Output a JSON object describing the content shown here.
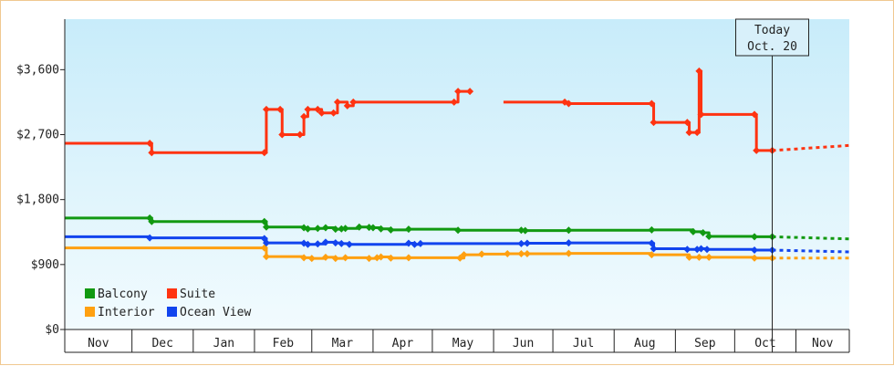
{
  "chart_data": {
    "type": "line",
    "title": "",
    "xlabel": "",
    "ylabel": "",
    "ylim": [
      0,
      4300
    ],
    "yticks": [
      0,
      900,
      1800,
      2700,
      3600
    ],
    "ytick_labels": [
      "$0",
      "$900",
      "$1,800",
      "$2,700",
      "$3,600"
    ],
    "xlim": [
      "2023-10-28",
      "2024-11-28"
    ],
    "month_labels": [
      "Nov",
      "Dec",
      "Jan",
      "Feb",
      "Mar",
      "Apr",
      "May",
      "Jun",
      "Jul",
      "Aug",
      "Sep",
      "Oct",
      "Nov"
    ],
    "month_bounds": [
      "2023-10-28",
      "2023-12-01",
      "2024-01-01",
      "2024-02-01",
      "2024-03-01",
      "2024-04-01",
      "2024-05-01",
      "2024-06-01",
      "2024-07-01",
      "2024-08-01",
      "2024-09-01",
      "2024-10-01",
      "2024-11-01",
      "2024-11-28"
    ],
    "today": {
      "date": "2024-10-20",
      "line1": "Today",
      "line2": "Oct. 20"
    },
    "legend_position": "bottom-left",
    "series": [
      {
        "name": "Balcony",
        "color": "#119911",
        "style": "step",
        "points": [
          [
            "2023-10-28",
            1545
          ],
          [
            "2023-12-10",
            1545
          ],
          [
            "2023-12-11",
            1495
          ],
          [
            "2024-02-06",
            1495
          ],
          [
            "2024-02-07",
            1420
          ],
          [
            "2024-02-26",
            1410
          ],
          [
            "2024-02-28",
            1395
          ],
          [
            "2024-03-04",
            1400
          ],
          [
            "2024-03-08",
            1410
          ],
          [
            "2024-03-13",
            1390
          ],
          [
            "2024-03-16",
            1395
          ],
          [
            "2024-03-18",
            1400
          ],
          [
            "2024-03-25",
            1420
          ],
          [
            "2024-03-30",
            1415
          ],
          [
            "2024-04-01",
            1410
          ],
          [
            "2024-04-05",
            1395
          ],
          [
            "2024-04-10",
            1380
          ],
          [
            "2024-04-19",
            1390
          ],
          [
            "2024-05-14",
            1375
          ],
          [
            "2024-06-15",
            1375
          ],
          [
            "2024-06-17",
            1370
          ],
          [
            "2024-07-09",
            1375
          ],
          [
            "2024-08-20",
            1380
          ],
          [
            "2024-09-10",
            1355
          ],
          [
            "2024-09-15",
            1340
          ],
          [
            "2024-09-18",
            1290
          ],
          [
            "2024-10-11",
            1285
          ],
          [
            "2024-10-20",
            1285
          ]
        ],
        "projection": [
          [
            "2024-10-20",
            1285
          ],
          [
            "2024-11-28",
            1255
          ]
        ]
      },
      {
        "name": "Suite",
        "color": "#ff3311",
        "style": "step",
        "points": [
          [
            "2023-10-28",
            2580
          ],
          [
            "2023-12-10",
            2580
          ],
          [
            "2023-12-11",
            2450
          ],
          [
            "2024-02-06",
            2450
          ],
          [
            "2024-02-07",
            3050
          ],
          [
            "2024-02-14",
            3050
          ],
          [
            "2024-02-15",
            2700
          ],
          [
            "2024-02-24",
            2700
          ],
          [
            "2024-02-26",
            2950
          ],
          [
            "2024-02-28",
            3050
          ],
          [
            "2024-03-04",
            3050
          ],
          [
            "2024-03-06",
            3000
          ],
          [
            "2024-03-12",
            3000
          ],
          [
            "2024-03-14",
            3150
          ],
          [
            "2024-03-19",
            3100
          ],
          [
            "2024-03-22",
            3150
          ],
          [
            "2024-05-12",
            3150
          ],
          [
            "2024-05-14",
            3300
          ],
          [
            "2024-05-20",
            3300
          ]
        ],
        "points_b": [
          [
            "2024-06-06",
            3150
          ],
          [
            "2024-07-07",
            3150
          ],
          [
            "2024-07-09",
            3130
          ],
          [
            "2024-08-20",
            3130
          ],
          [
            "2024-08-21",
            2870
          ],
          [
            "2024-09-07",
            2870
          ],
          [
            "2024-09-08",
            2730
          ],
          [
            "2024-09-12",
            2730
          ],
          [
            "2024-09-13",
            3580
          ],
          [
            "2024-09-14",
            2980
          ],
          [
            "2024-10-11",
            2980
          ],
          [
            "2024-10-12",
            2480
          ],
          [
            "2024-10-20",
            2480
          ]
        ],
        "projection": [
          [
            "2024-10-20",
            2480
          ],
          [
            "2024-11-28",
            2550
          ]
        ]
      },
      {
        "name": "Interior",
        "color": "#ffa010",
        "style": "step",
        "points": [
          [
            "2023-10-28",
            1130
          ],
          [
            "2024-02-06",
            1130
          ],
          [
            "2024-02-07",
            1010
          ],
          [
            "2024-02-26",
            995
          ],
          [
            "2024-03-01",
            985
          ],
          [
            "2024-03-08",
            1000
          ],
          [
            "2024-03-13",
            985
          ],
          [
            "2024-03-18",
            995
          ],
          [
            "2024-03-30",
            985
          ],
          [
            "2024-04-03",
            995
          ],
          [
            "2024-04-05",
            1005
          ],
          [
            "2024-04-10",
            990
          ],
          [
            "2024-04-19",
            995
          ],
          [
            "2024-05-15",
            990
          ],
          [
            "2024-05-17",
            1035
          ],
          [
            "2024-05-26",
            1045
          ],
          [
            "2024-06-08",
            1050
          ],
          [
            "2024-06-15",
            1050
          ],
          [
            "2024-06-18",
            1050
          ],
          [
            "2024-07-09",
            1055
          ],
          [
            "2024-08-20",
            1035
          ],
          [
            "2024-09-08",
            1000
          ],
          [
            "2024-09-13",
            1000
          ],
          [
            "2024-09-18",
            1000
          ],
          [
            "2024-10-11",
            990
          ],
          [
            "2024-10-20",
            990
          ]
        ],
        "projection": [
          [
            "2024-10-20",
            990
          ],
          [
            "2024-11-28",
            990
          ]
        ]
      },
      {
        "name": "Ocean View",
        "color": "#1144ee",
        "style": "step",
        "points": [
          [
            "2023-10-28",
            1285
          ],
          [
            "2023-12-10",
            1270
          ],
          [
            "2024-02-06",
            1260
          ],
          [
            "2024-02-07",
            1200
          ],
          [
            "2024-02-26",
            1195
          ],
          [
            "2024-02-28",
            1180
          ],
          [
            "2024-03-04",
            1185
          ],
          [
            "2024-03-08",
            1210
          ],
          [
            "2024-03-13",
            1200
          ],
          [
            "2024-03-16",
            1190
          ],
          [
            "2024-03-20",
            1180
          ],
          [
            "2024-04-19",
            1195
          ],
          [
            "2024-04-22",
            1180
          ],
          [
            "2024-04-25",
            1190
          ],
          [
            "2024-06-15",
            1190
          ],
          [
            "2024-06-18",
            1195
          ],
          [
            "2024-07-09",
            1200
          ],
          [
            "2024-08-20",
            1195
          ],
          [
            "2024-08-21",
            1120
          ],
          [
            "2024-09-07",
            1110
          ],
          [
            "2024-09-12",
            1110
          ],
          [
            "2024-09-14",
            1120
          ],
          [
            "2024-09-17",
            1110
          ],
          [
            "2024-10-11",
            1100
          ],
          [
            "2024-10-20",
            1100
          ]
        ],
        "projection": [
          [
            "2024-10-20",
            1100
          ],
          [
            "2024-11-28",
            1075
          ]
        ]
      }
    ]
  },
  "legend": [
    {
      "label": "Balcony",
      "color": "#119911"
    },
    {
      "label": "Suite",
      "color": "#ff3311"
    },
    {
      "label": "Interior",
      "color": "#ffa010"
    },
    {
      "label": "Ocean View",
      "color": "#1144ee"
    }
  ],
  "colors": {
    "plot_top": "#c8ecfa",
    "plot_bottom": "#f2fbfe",
    "axis": "#222222",
    "frame": "#f0c890"
  }
}
